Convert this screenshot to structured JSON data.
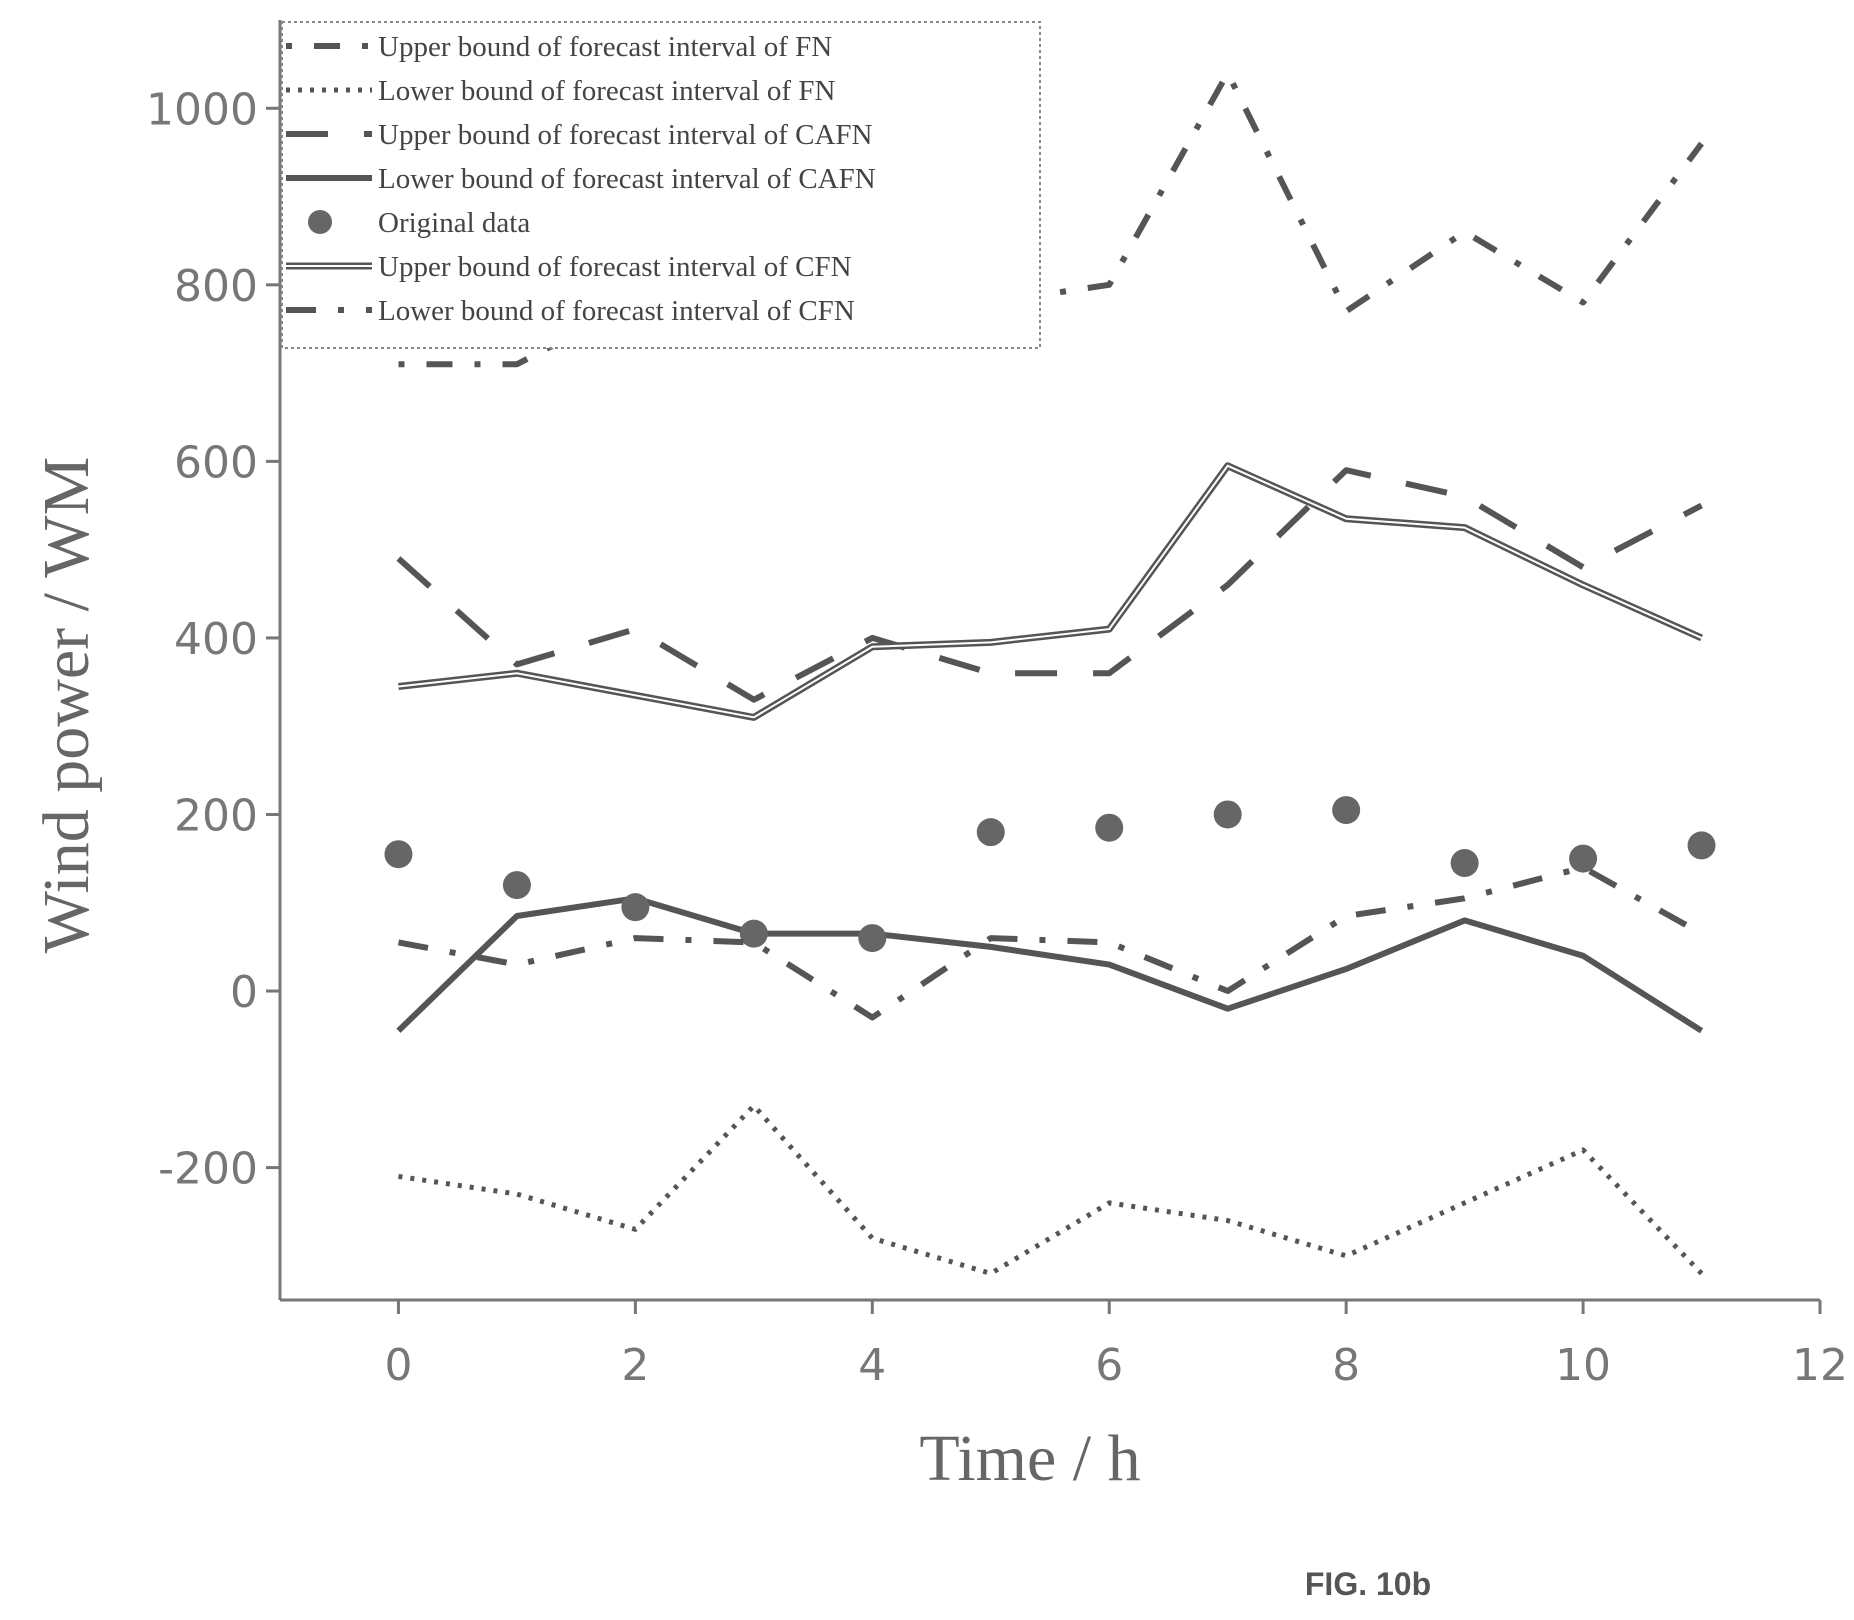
{
  "chart_data": {
    "type": "line",
    "xlabel": "Time / h",
    "ylabel": "Wind power / WM",
    "xlim": [
      -1,
      12
    ],
    "ylim": [
      -350,
      1100
    ],
    "x_ticks": [
      0,
      2,
      4,
      6,
      8,
      10,
      12
    ],
    "y_ticks": [
      -200,
      0,
      200,
      400,
      600,
      800,
      1000
    ],
    "grid": false,
    "legend_position": "top-left",
    "x": [
      0,
      1,
      2,
      3,
      4,
      5,
      6,
      7,
      8,
      9,
      10,
      11
    ],
    "series": [
      {
        "name": "Upper bound of forecast interval of FN",
        "style": "dash-dot",
        "color": "#555555",
        "values": [
          710,
          710,
          780,
          800,
          910,
          780,
          800,
          1040,
          770,
          860,
          780,
          960
        ]
      },
      {
        "name": "Lower bound of forecast interval of FN",
        "style": "dotted",
        "color": "#555555",
        "values": [
          -210,
          -230,
          -270,
          -130,
          -280,
          -320,
          -240,
          -260,
          -300,
          -240,
          -180,
          -320
        ]
      },
      {
        "name": "Upper bound of forecast interval of CAFN",
        "style": "long-dash",
        "color": "#555555",
        "values": [
          490,
          370,
          410,
          330,
          400,
          360,
          360,
          460,
          590,
          560,
          480,
          550
        ]
      },
      {
        "name": "Lower bound of forecast interval of CAFN",
        "style": "solid",
        "color": "#555555",
        "values": [
          -45,
          85,
          105,
          65,
          65,
          50,
          30,
          -20,
          25,
          80,
          40,
          -45
        ]
      },
      {
        "name": "Original data",
        "style": "markers",
        "color": "#555555",
        "values": [
          155,
          120,
          95,
          65,
          60,
          180,
          185,
          200,
          205,
          145,
          150,
          165
        ]
      },
      {
        "name": "Upper bound of forecast interval of CFN",
        "style": "double",
        "color": "#555555",
        "values": [
          345,
          360,
          335,
          310,
          390,
          395,
          410,
          595,
          535,
          525,
          460,
          400
        ]
      },
      {
        "name": "Lower bound of forecast interval of CFN",
        "style": "dash-dot-2",
        "color": "#555555",
        "values": [
          55,
          30,
          60,
          55,
          -30,
          60,
          55,
          0,
          85,
          105,
          140,
          65
        ]
      }
    ]
  },
  "caption": "FIG. 10b"
}
